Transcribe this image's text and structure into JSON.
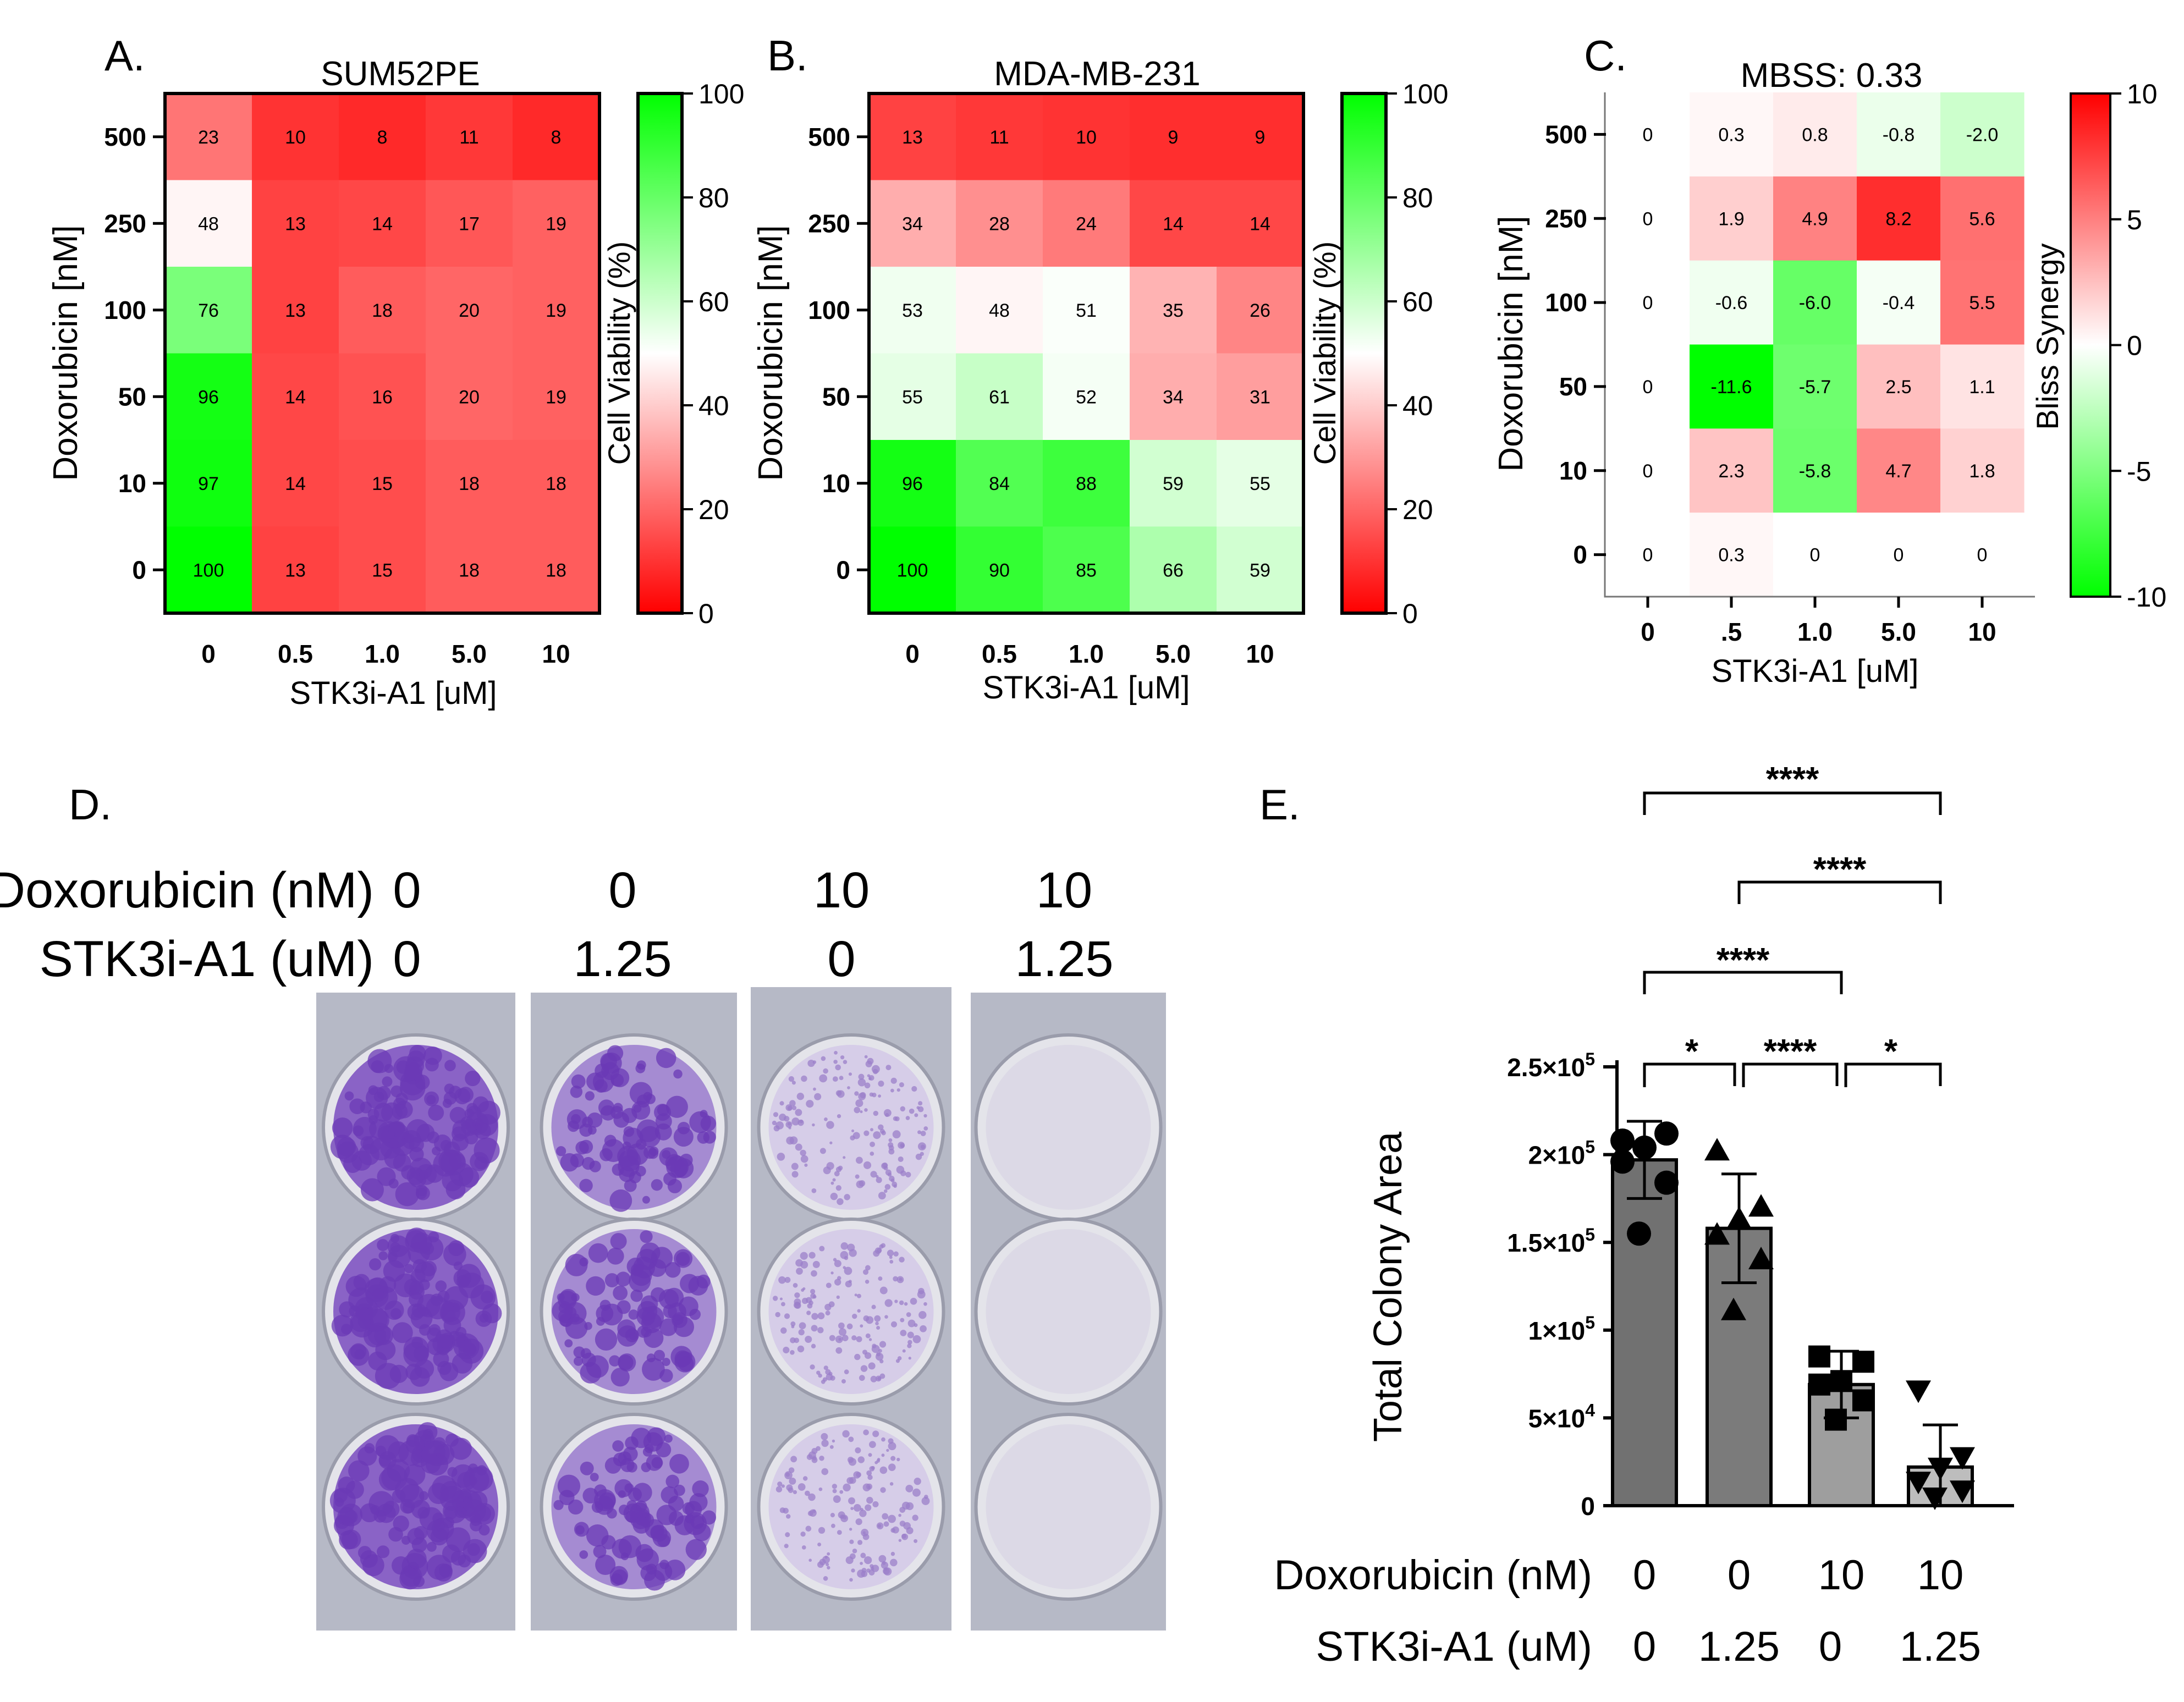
{
  "panels": {
    "A": "A.",
    "B": "B.",
    "C": "C.",
    "D": "D.",
    "E": "E."
  },
  "chart_data": [
    {
      "type": "heatmap",
      "title": "SUM52PE",
      "xlabel": "STK3i-A1 [uM]",
      "ylabel": "Doxorubicin [nM]",
      "x_categories": [
        "0",
        "0.5",
        "1.0",
        "5.0",
        "10"
      ],
      "y_categories": [
        "500",
        "250",
        "100",
        "50",
        "10",
        "0"
      ],
      "values": [
        [
          23,
          10,
          8,
          11,
          8
        ],
        [
          48,
          13,
          14,
          17,
          19
        ],
        [
          76,
          13,
          18,
          20,
          19
        ],
        [
          96,
          14,
          16,
          20,
          19
        ],
        [
          97,
          14,
          15,
          18,
          18
        ],
        [
          100,
          13,
          15,
          18,
          18
        ]
      ],
      "colorbar": {
        "label": "Cell Viability (%)",
        "range": [
          0,
          100
        ],
        "ticks": [
          "0",
          "20",
          "40",
          "60",
          "80",
          "100"
        ],
        "colors": [
          "#ff0000",
          "#ffffff",
          "#00ff00"
        ]
      }
    },
    {
      "type": "heatmap",
      "title": "MDA-MB-231",
      "xlabel": "STK3i-A1 [uM]",
      "ylabel": "Doxorubicin [nM]",
      "x_categories": [
        "0",
        "0.5",
        "1.0",
        "5.0",
        "10"
      ],
      "y_categories": [
        "500",
        "250",
        "100",
        "50",
        "10",
        "0"
      ],
      "values": [
        [
          13,
          11,
          10,
          9,
          9
        ],
        [
          34,
          28,
          24,
          14,
          14
        ],
        [
          53,
          48,
          51,
          35,
          26
        ],
        [
          55,
          61,
          52,
          34,
          31
        ],
        [
          96,
          84,
          88,
          59,
          55
        ],
        [
          100,
          90,
          85,
          66,
          59
        ]
      ],
      "colorbar": {
        "label": "Cell Viability (%)",
        "range": [
          0,
          100
        ],
        "ticks": [
          "0",
          "20",
          "40",
          "60",
          "80",
          "100"
        ],
        "colors": [
          "#ff0000",
          "#ffffff",
          "#00ff00"
        ]
      }
    },
    {
      "type": "heatmap",
      "title": "MBSS: 0.33",
      "xlabel": "STK3i-A1 [uM]",
      "ylabel": "Doxorubicin [nM]",
      "x_categories": [
        "0",
        ".5",
        "1.0",
        "5.0",
        "10"
      ],
      "y_categories": [
        "500",
        "250",
        "100",
        "50",
        "10",
        "0"
      ],
      "labels": [
        [
          "0",
          "0.3",
          "0.8",
          "-0.8",
          "-2.0"
        ],
        [
          "0",
          "1.9",
          "4.9",
          "8.2",
          "5.6"
        ],
        [
          "0",
          "-0.6",
          "-6.0",
          "-0.4",
          "5.5"
        ],
        [
          "0",
          "-11.6",
          "-5.7",
          "2.5",
          "1.1"
        ],
        [
          "0",
          "2.3",
          "-5.8",
          "4.7",
          "1.8"
        ],
        [
          "0",
          "0.3",
          "0",
          "0",
          "0"
        ]
      ],
      "colorbar": {
        "label": "Bliss Synergy",
        "range": [
          -10,
          10
        ],
        "ticks": [
          "-10",
          "-5",
          "0",
          "5",
          "10"
        ],
        "colors": [
          "#00ff00",
          "#ffffff",
          "#ff0000"
        ]
      }
    },
    {
      "type": "bar",
      "ylabel": "Total Colony Area",
      "ylim": [
        0,
        250000
      ],
      "y_ticks": [
        {
          "value": 0,
          "label": "0"
        },
        {
          "value": 50000,
          "label": "5×10",
          "exp": "4"
        },
        {
          "value": 100000,
          "label": "1×10",
          "exp": "5"
        },
        {
          "value": 150000,
          "label": "1.5×10",
          "exp": "5"
        },
        {
          "value": 200000,
          "label": "2×10",
          "exp": "5"
        },
        {
          "value": 250000,
          "label": "2.5×10",
          "exp": "5"
        }
      ],
      "rows": [
        {
          "label": "Doxorubicin (nM)",
          "values": [
            "0",
            "0",
            "10",
            "10"
          ]
        },
        {
          "label": "STK3i-A1 (uM)",
          "values": [
            "0",
            "1.25",
            "0",
            "1.25"
          ]
        }
      ],
      "means": [
        197000,
        158000,
        69000,
        22000
      ],
      "sd": [
        22000,
        31000,
        19000,
        24000
      ],
      "bar_colors": [
        "#717171",
        "#7b7b7b",
        "#9e9e9e",
        "#bdbdbd"
      ],
      "markers": [
        "circle",
        "triangle-up",
        "square",
        "triangle-down"
      ],
      "points": [
        [
          208000,
          212000,
          204000,
          196000,
          184000,
          155000
        ],
        [
          202000,
          170000,
          163000,
          154000,
          140000,
          111000
        ],
        [
          85000,
          82000,
          71000,
          69000,
          60000,
          49000
        ],
        [
          66000,
          28000,
          22000,
          14000,
          9000,
          5000
        ]
      ],
      "significance": [
        {
          "from": 0,
          "to": 3,
          "label": "****"
        },
        {
          "from": 1,
          "to": 3,
          "label": "****"
        },
        {
          "from": 0,
          "to": 2,
          "label": "****"
        },
        {
          "from": 0,
          "to": 1,
          "label": "*"
        },
        {
          "from": 1,
          "to": 2,
          "label": "****"
        },
        {
          "from": 2,
          "to": 3,
          "label": "*"
        }
      ]
    }
  ],
  "plate": {
    "header": [
      {
        "label": "Doxorubicin (nM)",
        "values": [
          "0",
          "0",
          "10",
          "10"
        ]
      },
      {
        "label": "STK3i-A1 (uM)",
        "values": [
          "0",
          "1.25",
          "0",
          "1.25"
        ]
      }
    ],
    "wells": [
      {
        "stain": "heavy"
      },
      {
        "stain": "high"
      },
      {
        "stain": "sparse"
      },
      {
        "stain": "faint"
      }
    ],
    "colors": {
      "stain": "#6b3ab5",
      "light": "#c9bfe0",
      "plate": "#b6b9c6"
    }
  }
}
